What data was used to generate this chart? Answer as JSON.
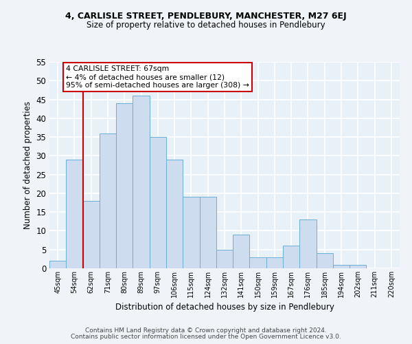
{
  "title_line1": "4, CARLISLE STREET, PENDLEBURY, MANCHESTER, M27 6EJ",
  "title_line2": "Size of property relative to detached houses in Pendlebury",
  "xlabel": "Distribution of detached houses by size in Pendlebury",
  "ylabel": "Number of detached properties",
  "categories": [
    "45sqm",
    "54sqm",
    "62sqm",
    "71sqm",
    "80sqm",
    "89sqm",
    "97sqm",
    "106sqm",
    "115sqm",
    "124sqm",
    "132sqm",
    "141sqm",
    "150sqm",
    "159sqm",
    "167sqm",
    "176sqm",
    "185sqm",
    "194sqm",
    "202sqm",
    "211sqm",
    "220sqm"
  ],
  "values": [
    2,
    29,
    18,
    36,
    44,
    46,
    35,
    29,
    19,
    19,
    5,
    9,
    3,
    3,
    6,
    13,
    4,
    1,
    1,
    0,
    0
  ],
  "bar_color": "#cddcef",
  "bar_edge_color": "#6baed6",
  "background_color": "#e8f0f8",
  "grid_color": "#ffffff",
  "vline_color": "#cc0000",
  "vline_x": 1.5,
  "annotation_text": "4 CARLISLE STREET: 67sqm\n← 4% of detached houses are smaller (12)\n95% of semi-detached houses are larger (308) →",
  "annotation_box_facecolor": "#ffffff",
  "annotation_box_edgecolor": "#cc0000",
  "ylim": [
    0,
    55
  ],
  "yticks": [
    0,
    5,
    10,
    15,
    20,
    25,
    30,
    35,
    40,
    45,
    50,
    55
  ],
  "fig_facecolor": "#f0f4f8",
  "footnote1": "Contains HM Land Registry data © Crown copyright and database right 2024.",
  "footnote2": "Contains public sector information licensed under the Open Government Licence v3.0."
}
